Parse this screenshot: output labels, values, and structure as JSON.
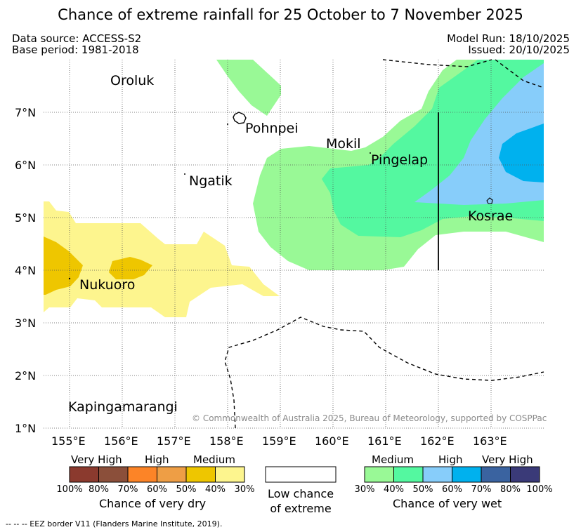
{
  "title": "Chance of extreme rainfall for 25 October to 7 November 2025",
  "meta": {
    "data_source": "Data source: ACCESS-S2",
    "base_period": "Base period: 1981-2018",
    "model_run": "Model Run: 18/10/2025",
    "issued": "Issued: 20/10/2025"
  },
  "axes": {
    "lat_labels": [
      "7°N",
      "6°N",
      "5°N",
      "4°N",
      "3°N",
      "2°N",
      "1°N"
    ],
    "lon_labels": [
      "155°E",
      "156°E",
      "157°E",
      "158°E",
      "159°E",
      "160°E",
      "161°E",
      "162°E",
      "163°E"
    ]
  },
  "places": {
    "oroluk": "Oroluk",
    "pohnpei": "Pohnpei",
    "mokil": "Mokil",
    "pingelap": "Pingelap",
    "ngatik": "Ngatik",
    "kosrae": "Kosrae",
    "nukuoro": "Nukuoro",
    "kapingamarangi": "Kapingamarangi"
  },
  "copyright": "© Commonwealth of Australia 2025, Bureau of Meteorology, supported by COSPPac",
  "legend": {
    "dry": {
      "headers": [
        "Very High",
        "High",
        "Medium"
      ],
      "colors": [
        "#8b3a2e",
        "#8b4f3a",
        "#fc8427",
        "#ee9e45",
        "#eec600",
        "#fdf58e"
      ],
      "pcts": [
        "100%",
        "80%",
        "70%",
        "60%",
        "50%",
        "40%",
        "30%"
      ],
      "caption": "Chance of very dry"
    },
    "low": {
      "line1": "Low chance",
      "line2": "of extreme"
    },
    "wet": {
      "headers": [
        "Medium",
        "High",
        "Very High"
      ],
      "colors": [
        "#99f996",
        "#54f8a0",
        "#87cdfa",
        "#00b1ee",
        "#3a63a0",
        "#3a3a78"
      ],
      "pcts": [
        "30%",
        "40%",
        "50%",
        "60%",
        "70%",
        "80%",
        "100%"
      ],
      "caption": "Chance of very wet"
    }
  },
  "eez_note": "-- -- -- EEZ border V11 (Flanders Marine Institute, 2019)."
}
